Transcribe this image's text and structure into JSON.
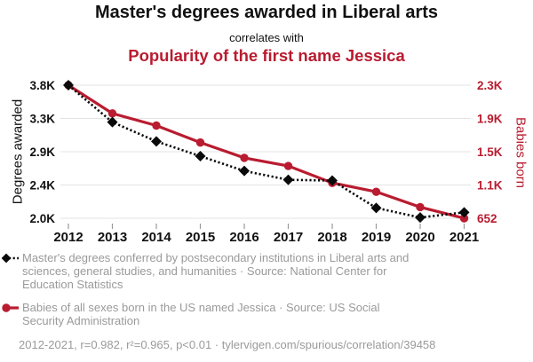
{
  "header": {
    "title_primary": "Master's degrees awarded in Liberal arts",
    "connector": "correlates with",
    "title_secondary": "Popularity of the first name Jessica"
  },
  "colors": {
    "degrees_series": "#0a0a0a",
    "jessica_series": "#b91c30",
    "legend_text": "#9a9a9a",
    "gridline": "#e3e3e3",
    "tick_mark": "#9a9a9a"
  },
  "chart_data": {
    "type": "line",
    "x": [
      2012,
      2013,
      2014,
      2015,
      2016,
      2017,
      2018,
      2019,
      2020,
      2021
    ],
    "series": [
      {
        "name": "Master's degrees awarded in Liberal arts",
        "axis": "left",
        "color": "#0a0a0a",
        "line_style": "dashed",
        "marker": "diamond",
        "values": [
          3800,
          3300,
          3040,
          2840,
          2640,
          2520,
          2510,
          2140,
          2010,
          2080
        ]
      },
      {
        "name": "Babies born in the US named Jessica",
        "axis": "right",
        "color": "#b91c30",
        "line_style": "solid",
        "marker": "circle",
        "values": [
          2300,
          1950,
          1800,
          1590,
          1400,
          1300,
          1090,
          980,
          790,
          652
        ]
      }
    ],
    "left_axis": {
      "label": "Degrees awarded",
      "min": 2000,
      "max": 3800,
      "tick_labels": [
        "3.8K",
        "3.3K",
        "2.9K",
        "2.4K",
        "2.0K"
      ]
    },
    "right_axis": {
      "label": "Babies born",
      "min": 652,
      "max": 2300,
      "tick_labels": [
        "2.3K",
        "1.9K",
        "1.5K",
        "1.1K",
        "652"
      ]
    },
    "grid": true,
    "legend_position": "bottom"
  },
  "legend": {
    "items": [
      {
        "marker": "black-diamond-dashed",
        "lines": [
          "Master's degrees conferred by postsecondary institutions in Liberal arts and",
          "sciences, general studies, and humanities · Source: National Center for",
          "Education Statistics"
        ]
      },
      {
        "marker": "red-circle-solid",
        "lines": [
          "Babies of all sexes born in the US named Jessica · Source: US Social",
          "Security Administration"
        ]
      }
    ]
  },
  "footer": {
    "stats_line": "2012-2021, r=0.982, r²=0.965, p<0.01 · tylervigen.com/spurious/correlation/39458"
  }
}
